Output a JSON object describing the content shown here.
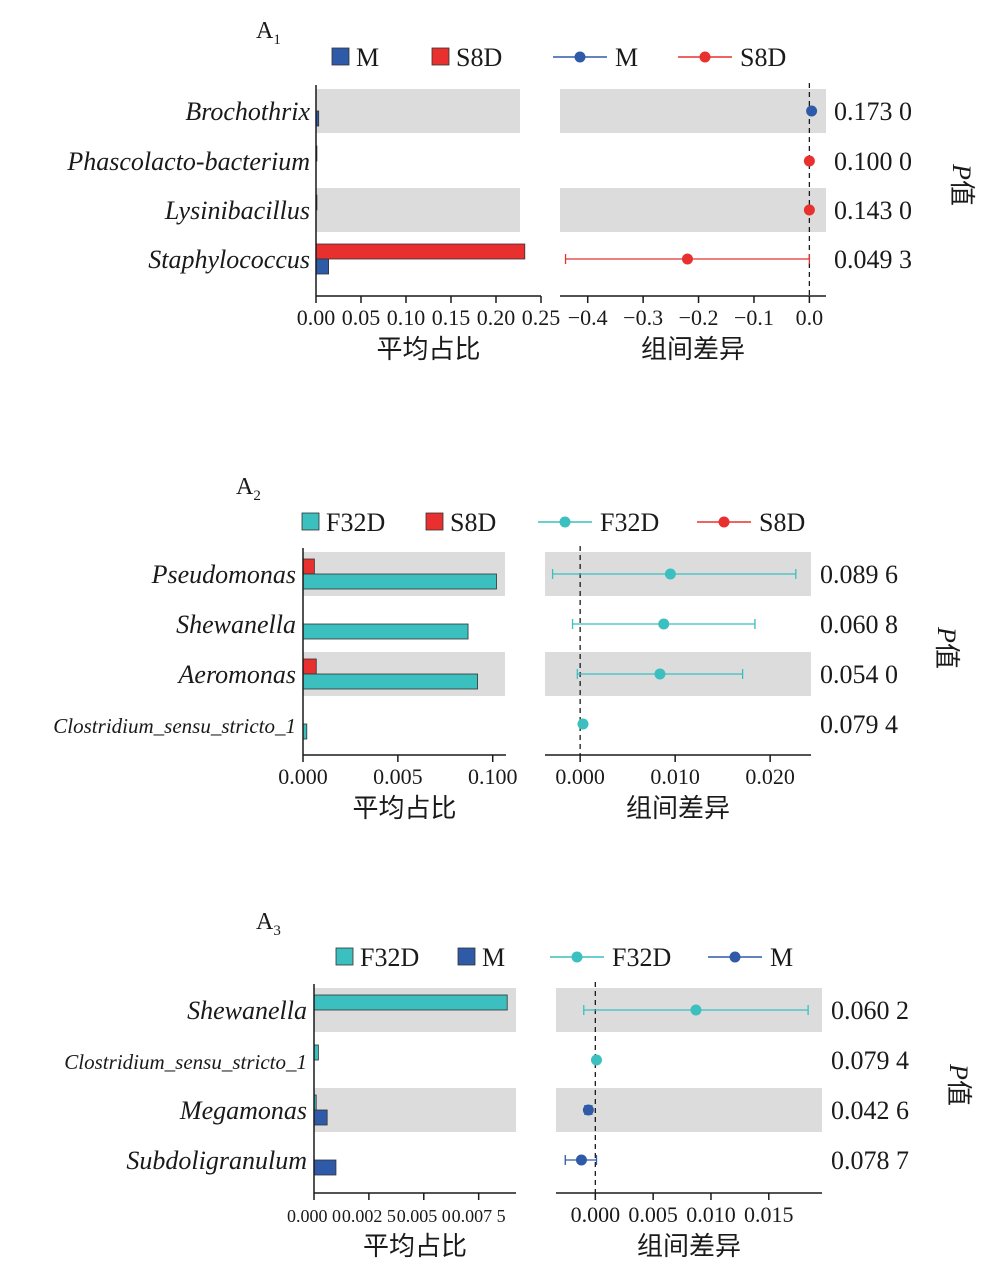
{
  "colors": {
    "M": "#2f5aa8",
    "S8D": "#e8312f",
    "F32D": "#3bbfbf",
    "band": "#dcdcdc",
    "dash": "#1a1a1a"
  },
  "chart_data": [
    {
      "type": "bar",
      "panel_label": "A",
      "panel_sub": "1",
      "legend_bars": [
        "M",
        "S8D"
      ],
      "legend_points": [
        "M",
        "S8D"
      ],
      "categories": [
        "Brochothrix",
        "Phascolacto-bacterium",
        "Lysinibacillus",
        "Staphylococcus"
      ],
      "band_rows": [
        true,
        false,
        true,
        false
      ],
      "series": [
        {
          "name": "S8D",
          "values": [
            0.0,
            0.001,
            0.001,
            0.232
          ]
        },
        {
          "name": "M",
          "values": [
            0.003,
            0.0,
            0.0,
            0.014
          ]
        }
      ],
      "bar_ticks": [
        "0.00",
        "0.05",
        "0.10",
        "0.15",
        "0.20",
        "0.25"
      ],
      "bar_xlim": [
        0,
        0.25
      ],
      "bar_xlabel": "平均占比",
      "diff": {
        "estimates": [
          0.004,
          0.0,
          0.0,
          -0.22
        ],
        "ci_low": [
          0.004,
          0.0,
          0.0,
          -0.44
        ],
        "ci_high": [
          0.004,
          0.0,
          0.0,
          0.0
        ],
        "favoured": [
          "M",
          "S8D",
          "S8D",
          "S8D"
        ],
        "ticks": [
          "−0.4",
          "−0.3",
          "−0.2",
          "−0.1",
          "0.0"
        ],
        "xlim": [
          -0.45,
          0.03
        ],
        "xlabel": "组间差异"
      },
      "p_values": [
        "0.173 0",
        "0.100 0",
        "0.143 0",
        "0.049 3"
      ],
      "p_title": "P值"
    },
    {
      "type": "bar",
      "panel_label": "A",
      "panel_sub": "2",
      "legend_bars": [
        "F32D",
        "S8D"
      ],
      "legend_points": [
        "F32D",
        "S8D"
      ],
      "categories": [
        "Pseudomonas",
        "Shewanella",
        "Aeromonas",
        "Clostridium_sensu_stricto_1"
      ],
      "band_rows": [
        true,
        false,
        true,
        false
      ],
      "series": [
        {
          "name": "S8D",
          "values": [
            0.0006,
            0.0,
            0.0007,
            0.0
          ]
        },
        {
          "name": "F32D",
          "values": [
            0.0102,
            0.0087,
            0.0092,
            0.0002
          ]
        }
      ],
      "bar_ticks": [
        "0.000",
        "0.005",
        "0.100"
      ],
      "bar_xlim": [
        0,
        0.0107
      ],
      "bar_xlabel": "平均占比",
      "diff": {
        "estimates": [
          0.0095,
          0.0088,
          0.0084,
          0.0003
        ],
        "ci_low": [
          -0.0029,
          -0.0008,
          -0.0003,
          0.0003
        ],
        "ci_high": [
          0.0227,
          0.0184,
          0.0171,
          0.0003
        ],
        "favoured": [
          "F32D",
          "F32D",
          "F32D",
          "F32D"
        ],
        "ticks": [
          "0.000",
          "0.010",
          "0.020"
        ],
        "xlim": [
          -0.0037,
          0.0243
        ],
        "xlabel": "组间差异"
      },
      "p_values": [
        "0.089 6",
        "0.060 8",
        "0.054 0",
        "0.079 4"
      ],
      "p_title": "P值"
    },
    {
      "type": "bar",
      "panel_label": "A",
      "panel_sub": "3",
      "legend_bars": [
        "F32D",
        "M"
      ],
      "legend_points": [
        "F32D",
        "M"
      ],
      "categories": [
        "Shewanella",
        "Clostridium_sensu_stricto_1",
        "Megamonas",
        "Subdoligranulum"
      ],
      "band_rows": [
        true,
        false,
        true,
        false
      ],
      "series": [
        {
          "name": "F32D",
          "values": [
            0.0088,
            0.0002,
            0.0001,
            0.0
          ]
        },
        {
          "name": "M",
          "values": [
            0.0,
            0.0,
            0.0006,
            0.001
          ]
        }
      ],
      "bar_ticks": [
        "0.000 0",
        "0.002 5",
        "0.005 0",
        "0.007 5"
      ],
      "bar_xlim": [
        0,
        0.0092
      ],
      "bar_xlabel": "平均占比",
      "diff": {
        "estimates": [
          0.0087,
          0.0001,
          -0.0006,
          -0.0012
        ],
        "ci_low": [
          -0.001,
          0.0001,
          -0.0009,
          -0.0026
        ],
        "ci_high": [
          0.0184,
          0.0001,
          -0.0003,
          0.0001
        ],
        "favoured": [
          "F32D",
          "F32D",
          "M",
          "M"
        ],
        "ticks": [
          "0.000",
          "0.005",
          "0.010",
          "0.015"
        ],
        "xlim": [
          -0.0034,
          0.0196
        ],
        "xlabel": "组间差异"
      },
      "p_values": [
        "0.060 2",
        "0.079 4",
        "0.042 6",
        "0.078 7"
      ],
      "p_title": "P值"
    }
  ]
}
